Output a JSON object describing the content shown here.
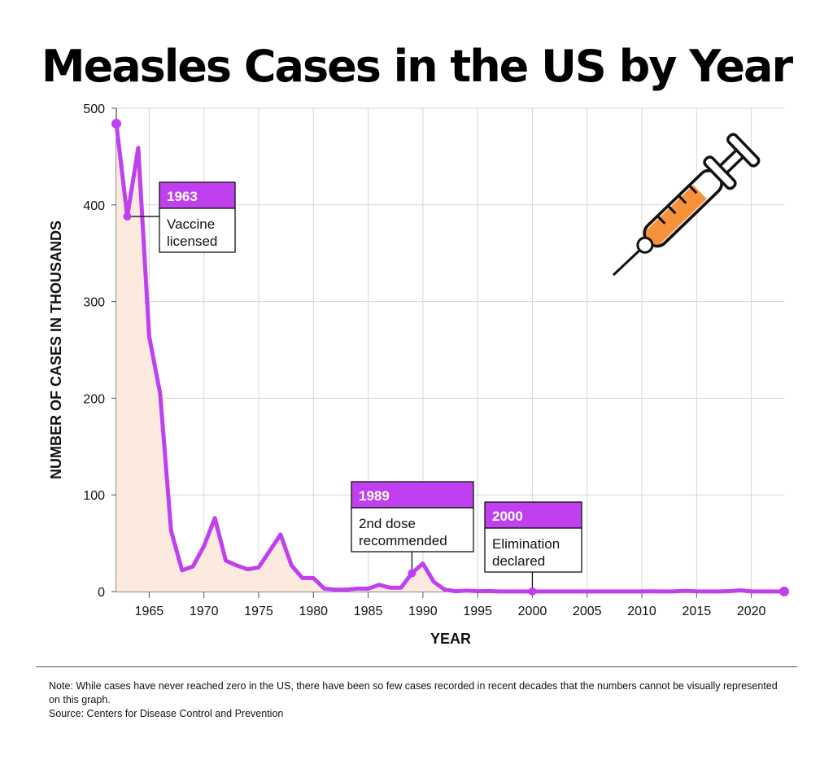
{
  "title": "Measles Cases in the US by Year",
  "colors": {
    "line": "#c040f0",
    "area": "#fbeadd",
    "label_header": "#c040f0",
    "syringe_fill": "#f7923a",
    "grid": "#d6d6d6"
  },
  "icons": {
    "syringe": "syringe-icon"
  },
  "chart_data": {
    "type": "area",
    "title": "Measles Cases in the US by Year",
    "xlabel": "YEAR",
    "ylabel": "NUMBER OF CASES IN THOUSANDS",
    "xlim": [
      1962,
      2023
    ],
    "ylim": [
      0,
      500
    ],
    "x_ticks": [
      1965,
      1970,
      1975,
      1980,
      1985,
      1990,
      1995,
      2000,
      2005,
      2010,
      2015,
      2020
    ],
    "y_ticks": [
      0,
      100,
      200,
      300,
      400,
      500
    ],
    "grid": true,
    "x": [
      1962,
      1963,
      1964,
      1965,
      1966,
      1967,
      1968,
      1969,
      1970,
      1971,
      1972,
      1973,
      1974,
      1975,
      1976,
      1977,
      1978,
      1979,
      1980,
      1981,
      1982,
      1983,
      1984,
      1985,
      1986,
      1987,
      1988,
      1989,
      1990,
      1991,
      1992,
      1993,
      1994,
      1995,
      1996,
      1997,
      1998,
      1999,
      2000,
      2001,
      2002,
      2003,
      2004,
      2005,
      2006,
      2007,
      2008,
      2009,
      2010,
      2011,
      2012,
      2013,
      2014,
      2015,
      2016,
      2017,
      2018,
      2019,
      2020,
      2021,
      2022,
      2023
    ],
    "y": [
      484,
      388,
      459,
      264,
      205,
      63,
      22,
      26,
      47,
      76,
      32,
      27,
      23,
      25,
      42,
      59,
      27,
      14,
      14,
      3,
      2,
      2,
      3,
      3,
      7,
      4,
      4,
      19,
      29,
      10,
      2,
      0.3,
      1,
      0.3,
      0.5,
      0.1,
      0.1,
      0.1,
      0.1,
      0.1,
      0.1,
      0.1,
      0.1,
      0.1,
      0.1,
      0.1,
      0.1,
      0.1,
      0.1,
      0.2,
      0.1,
      0.2,
      0.7,
      0.2,
      0.1,
      0.1,
      0.4,
      1.3,
      0.1,
      0.1,
      0.1,
      0.1
    ],
    "annotations": [
      {
        "year": 1963,
        "value": 388,
        "label_year": "1963",
        "label_text": [
          "Vaccine",
          "licensed"
        ]
      },
      {
        "year": 1989,
        "value": 19,
        "label_year": "1989",
        "label_text": [
          "2nd dose",
          "recommended"
        ]
      },
      {
        "year": 2000,
        "value": 0.1,
        "label_year": "2000",
        "label_text": [
          "Elimination",
          "declared"
        ]
      }
    ]
  },
  "note": {
    "line1": "Note: While cases have never reached zero in the US, there have been so few cases recorded in recent decades that the numbers cannot be visually represented on this graph.",
    "line2": "Source: Centers for Disease Control and Prevention"
  }
}
